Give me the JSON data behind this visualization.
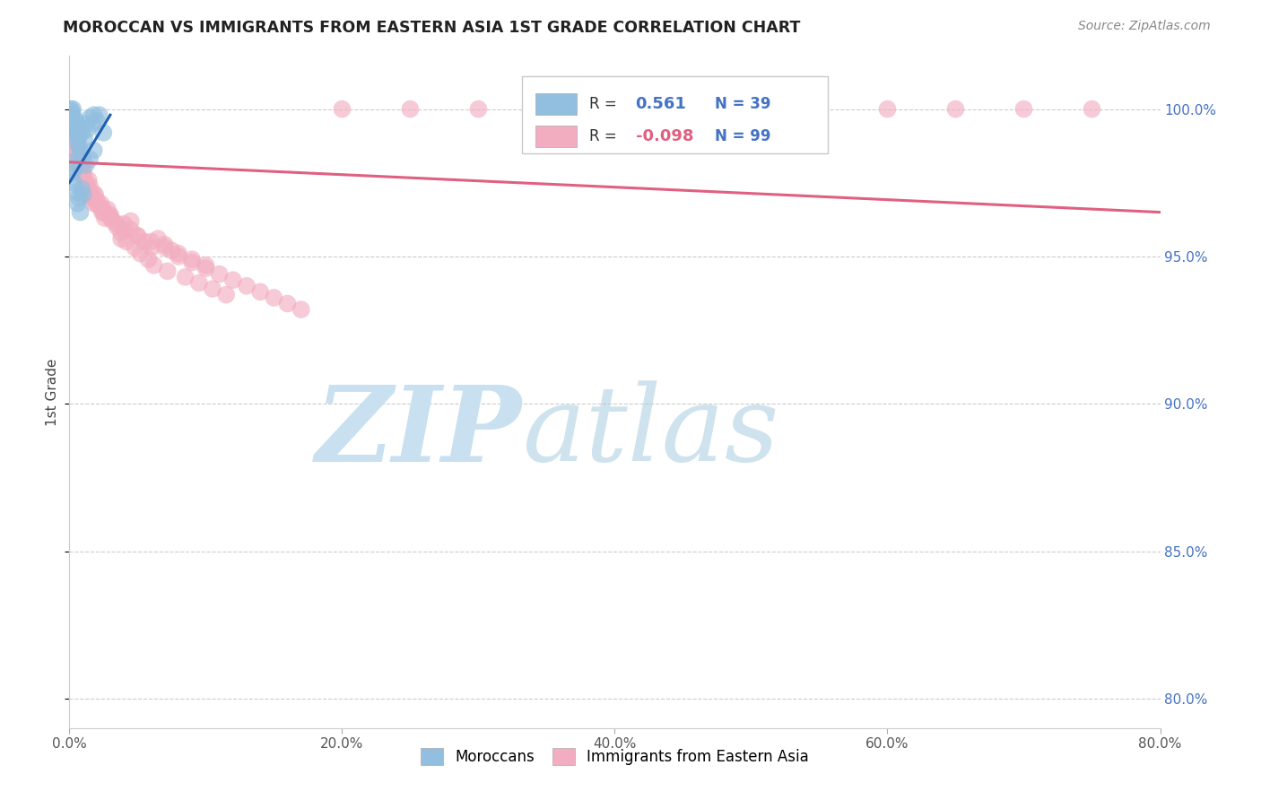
{
  "title": "MOROCCAN VS IMMIGRANTS FROM EASTERN ASIA 1ST GRADE CORRELATION CHART",
  "source": "Source: ZipAtlas.com",
  "xlabel_ticks": [
    "0.0%",
    "20.0%",
    "40.0%",
    "60.0%",
    "80.0%"
  ],
  "xlabel_vals": [
    0.0,
    20.0,
    40.0,
    60.0,
    80.0
  ],
  "ylabel_ticks": [
    "100.0%",
    "95.0%",
    "90.0%",
    "85.0%",
    "80.0%"
  ],
  "ylabel_vals": [
    100.0,
    95.0,
    90.0,
    85.0,
    80.0
  ],
  "xlim": [
    0.0,
    80.0
  ],
  "ylim": [
    79.0,
    101.8
  ],
  "ylabel": "1st Grade",
  "legend_blue_R": "0.561",
  "legend_blue_N": "39",
  "legend_pink_R": "-0.098",
  "legend_pink_N": "99",
  "blue_color": "#92bfe0",
  "pink_color": "#f2aec0",
  "blue_line_color": "#2060b0",
  "pink_line_color": "#e06080",
  "blue_scatter_x": [
    0.1,
    0.15,
    0.2,
    0.25,
    0.3,
    0.35,
    0.4,
    0.45,
    0.5,
    0.55,
    0.6,
    0.65,
    0.7,
    0.75,
    0.8,
    0.9,
    1.0,
    1.1,
    1.2,
    1.3,
    1.5,
    1.7,
    1.8,
    2.0,
    2.2,
    0.1,
    0.2,
    0.3,
    0.4,
    0.5,
    0.6,
    0.7,
    0.8,
    0.9,
    1.0,
    1.2,
    1.5,
    1.8,
    2.5
  ],
  "blue_scatter_y": [
    100.0,
    99.8,
    99.9,
    100.0,
    99.5,
    99.7,
    99.3,
    99.6,
    99.4,
    99.2,
    99.0,
    98.8,
    99.1,
    98.7,
    98.5,
    99.2,
    98.4,
    99.0,
    99.5,
    99.3,
    99.7,
    99.5,
    99.8,
    99.6,
    99.8,
    98.2,
    97.8,
    97.5,
    98.0,
    97.2,
    96.8,
    97.0,
    96.5,
    97.3,
    97.1,
    98.1,
    98.3,
    98.6,
    99.2
  ],
  "pink_scatter_x": [
    0.05,
    0.1,
    0.15,
    0.2,
    0.25,
    0.3,
    0.35,
    0.4,
    0.45,
    0.5,
    0.55,
    0.6,
    0.65,
    0.7,
    0.75,
    0.8,
    0.85,
    0.9,
    1.0,
    1.1,
    1.2,
    1.3,
    1.4,
    1.5,
    1.6,
    1.7,
    1.8,
    1.9,
    2.0,
    2.2,
    2.4,
    2.6,
    2.8,
    3.0,
    3.2,
    3.5,
    3.8,
    4.0,
    4.5,
    5.0,
    5.5,
    6.0,
    6.5,
    7.0,
    7.5,
    8.0,
    9.0,
    10.0,
    11.0,
    12.0,
    13.0,
    14.0,
    15.0,
    16.0,
    17.0,
    4.2,
    4.8,
    5.2,
    5.8,
    6.2,
    7.2,
    8.5,
    9.5,
    10.5,
    11.5,
    2.5,
    3.0,
    3.5,
    4.0,
    5.0,
    6.0,
    7.0,
    8.0,
    9.0,
    10.0,
    1.5,
    2.0,
    2.5,
    3.0,
    4.5,
    30.0,
    35.0,
    40.0,
    45.0,
    50.0,
    55.0,
    60.0,
    65.0,
    70.0,
    75.0,
    25.0,
    20.0,
    0.6,
    0.8,
    1.0,
    1.3,
    1.8,
    2.3,
    3.8
  ],
  "pink_scatter_y": [
    99.5,
    99.3,
    99.4,
    99.6,
    99.1,
    99.2,
    98.9,
    99.0,
    98.7,
    98.8,
    98.5,
    98.6,
    98.3,
    98.4,
    98.2,
    98.0,
    97.8,
    98.1,
    97.9,
    97.7,
    97.5,
    97.3,
    97.6,
    97.4,
    97.2,
    97.0,
    96.8,
    97.1,
    96.9,
    96.7,
    96.5,
    96.3,
    96.6,
    96.4,
    96.2,
    96.0,
    95.8,
    96.1,
    95.9,
    95.7,
    95.5,
    95.3,
    95.6,
    95.4,
    95.2,
    95.0,
    94.8,
    94.6,
    94.4,
    94.2,
    94.0,
    93.8,
    93.6,
    93.4,
    93.2,
    95.5,
    95.3,
    95.1,
    94.9,
    94.7,
    94.5,
    94.3,
    94.1,
    93.9,
    93.7,
    96.5,
    96.3,
    96.1,
    95.9,
    95.7,
    95.5,
    95.3,
    95.1,
    94.9,
    94.7,
    97.0,
    96.8,
    96.6,
    96.4,
    96.2,
    100.0,
    100.0,
    100.0,
    100.0,
    100.0,
    100.0,
    100.0,
    100.0,
    100.0,
    100.0,
    100.0,
    100.0,
    98.2,
    98.0,
    97.8,
    97.4,
    97.1,
    96.8,
    95.6
  ],
  "pink_trendline_x0": 0.0,
  "pink_trendline_x1": 80.0,
  "pink_trendline_y0": 98.2,
  "pink_trendline_y1": 96.5,
  "blue_trendline_x0": 0.0,
  "blue_trendline_x1": 3.0,
  "blue_trendline_y0": 97.5,
  "blue_trendline_y1": 99.8
}
